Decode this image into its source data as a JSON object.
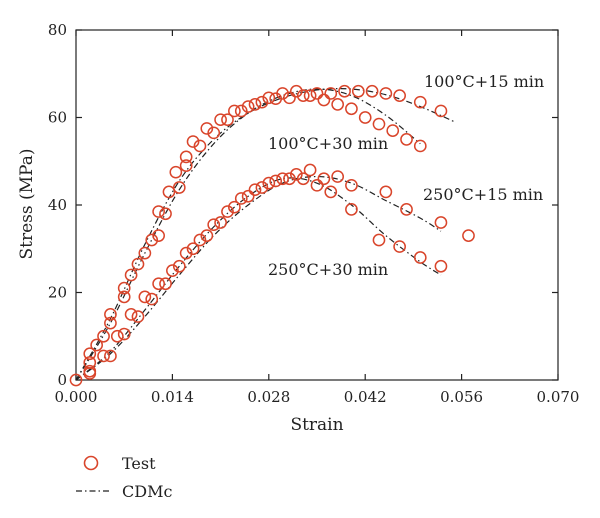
{
  "chart_data": {
    "type": "scatter",
    "xlabel": "Strain",
    "ylabel": "Stress (MPa)",
    "xlim": [
      0,
      0.07
    ],
    "ylim": [
      0,
      80
    ],
    "x_ticks": [
      "0.000",
      "0.014",
      "0.028",
      "0.042",
      "0.056",
      "0.070"
    ],
    "y_ticks": [
      "0",
      "20",
      "40",
      "60",
      "80"
    ],
    "grid": false,
    "legend": {
      "placement": "bottom-left",
      "entries": [
        {
          "label": "Test",
          "marker": "open-circle"
        },
        {
          "label": "CDMc",
          "marker": "dash-dot-line"
        }
      ]
    },
    "colors": {
      "test_markers": "#d9452b",
      "model_lines": "#222222",
      "axes": "#222222"
    },
    "annotations": [
      {
        "text": "100°C+15 min",
        "series": "100°C+15 min"
      },
      {
        "text": "100°C+30 min",
        "series": "100°C+30 min"
      },
      {
        "text": "250°C+15 min",
        "series": "250°C+15 min"
      },
      {
        "text": "250°C+30 min",
        "series": "250°C+30 min"
      }
    ],
    "series": [
      {
        "name": "100°C+15 min",
        "test": [
          [
            0,
            0
          ],
          [
            0.002,
            6
          ],
          [
            0.004,
            10
          ],
          [
            0.005,
            15
          ],
          [
            0.007,
            21
          ],
          [
            0.009,
            26.5
          ],
          [
            0.011,
            32
          ],
          [
            0.012,
            38.5
          ],
          [
            0.0135,
            43
          ],
          [
            0.0145,
            47.5
          ],
          [
            0.016,
            51
          ],
          [
            0.017,
            54.5
          ],
          [
            0.019,
            57.5
          ],
          [
            0.021,
            59.5
          ],
          [
            0.023,
            61.5
          ],
          [
            0.025,
            62.5
          ],
          [
            0.027,
            63.5
          ],
          [
            0.029,
            64.3
          ],
          [
            0.031,
            64.5
          ],
          [
            0.033,
            65
          ],
          [
            0.035,
            65.5
          ],
          [
            0.037,
            65.5
          ],
          [
            0.039,
            66
          ],
          [
            0.041,
            66
          ],
          [
            0.043,
            66
          ],
          [
            0.045,
            65.5
          ],
          [
            0.047,
            65
          ],
          [
            0.05,
            63.5
          ],
          [
            0.053,
            61.5
          ]
        ],
        "model": [
          [
            0,
            0
          ],
          [
            0.005,
            14
          ],
          [
            0.01,
            31
          ],
          [
            0.015,
            45.5
          ],
          [
            0.02,
            55
          ],
          [
            0.025,
            61
          ],
          [
            0.03,
            64.5
          ],
          [
            0.035,
            66.3
          ],
          [
            0.04,
            66.5
          ],
          [
            0.045,
            65.2
          ],
          [
            0.05,
            62.5
          ],
          [
            0.055,
            59
          ]
        ]
      },
      {
        "name": "100°C+30 min",
        "test": [
          [
            0.002,
            4
          ],
          [
            0.003,
            8
          ],
          [
            0.005,
            13
          ],
          [
            0.007,
            19
          ],
          [
            0.008,
            24
          ],
          [
            0.01,
            29
          ],
          [
            0.012,
            33
          ],
          [
            0.013,
            38
          ],
          [
            0.015,
            44
          ],
          [
            0.016,
            49
          ],
          [
            0.018,
            53.5
          ],
          [
            0.02,
            56.5
          ],
          [
            0.022,
            59.5
          ],
          [
            0.024,
            61.5
          ],
          [
            0.026,
            63
          ],
          [
            0.028,
            64.5
          ],
          [
            0.03,
            65.5
          ],
          [
            0.032,
            66
          ],
          [
            0.034,
            65
          ],
          [
            0.036,
            64
          ],
          [
            0.038,
            63
          ],
          [
            0.04,
            62
          ],
          [
            0.042,
            60
          ],
          [
            0.044,
            58.5
          ],
          [
            0.046,
            57
          ],
          [
            0.048,
            55
          ],
          [
            0.05,
            53.5
          ]
        ],
        "model": [
          [
            0,
            0
          ],
          [
            0.005,
            13
          ],
          [
            0.01,
            29
          ],
          [
            0.015,
            43.5
          ],
          [
            0.02,
            54
          ],
          [
            0.025,
            61
          ],
          [
            0.03,
            65
          ],
          [
            0.035,
            66.5
          ],
          [
            0.04,
            65
          ],
          [
            0.045,
            60.5
          ],
          [
            0.05,
            54
          ]
        ]
      },
      {
        "name": "250°C+15 min",
        "test": [
          [
            0.002,
            2
          ],
          [
            0.004,
            5.5
          ],
          [
            0.006,
            10
          ],
          [
            0.008,
            15
          ],
          [
            0.01,
            19
          ],
          [
            0.012,
            22
          ],
          [
            0.014,
            25
          ],
          [
            0.016,
            29
          ],
          [
            0.018,
            32
          ],
          [
            0.02,
            35.5
          ],
          [
            0.022,
            38.5
          ],
          [
            0.024,
            41.5
          ],
          [
            0.026,
            43.5
          ],
          [
            0.028,
            45
          ],
          [
            0.03,
            46
          ],
          [
            0.032,
            47
          ],
          [
            0.034,
            48
          ],
          [
            0.036,
            46
          ],
          [
            0.038,
            46.5
          ],
          [
            0.04,
            44.5
          ],
          [
            0.045,
            43
          ],
          [
            0.048,
            39
          ],
          [
            0.053,
            36
          ],
          [
            0.057,
            33
          ]
        ],
        "model": [
          [
            0,
            0
          ],
          [
            0.005,
            6
          ],
          [
            0.01,
            14.5
          ],
          [
            0.015,
            24
          ],
          [
            0.02,
            33
          ],
          [
            0.025,
            40
          ],
          [
            0.03,
            45
          ],
          [
            0.035,
            46.5
          ],
          [
            0.04,
            45
          ],
          [
            0.045,
            41
          ],
          [
            0.05,
            37
          ],
          [
            0.053,
            34
          ]
        ]
      },
      {
        "name": "250°C+30 min",
        "test": [
          [
            0.002,
            1.5
          ],
          [
            0.005,
            5.5
          ],
          [
            0.007,
            10.5
          ],
          [
            0.009,
            14.5
          ],
          [
            0.011,
            18.5
          ],
          [
            0.013,
            22
          ],
          [
            0.015,
            26
          ],
          [
            0.017,
            30
          ],
          [
            0.019,
            33
          ],
          [
            0.021,
            36
          ],
          [
            0.023,
            39.5
          ],
          [
            0.025,
            42
          ],
          [
            0.027,
            44
          ],
          [
            0.029,
            45.5
          ],
          [
            0.031,
            46
          ],
          [
            0.033,
            46
          ],
          [
            0.035,
            44.5
          ],
          [
            0.037,
            43
          ],
          [
            0.04,
            39
          ],
          [
            0.044,
            32
          ],
          [
            0.047,
            30.5
          ],
          [
            0.05,
            28
          ],
          [
            0.053,
            26
          ]
        ],
        "model": [
          [
            0,
            0
          ],
          [
            0.005,
            6.5
          ],
          [
            0.01,
            16
          ],
          [
            0.015,
            26
          ],
          [
            0.02,
            35
          ],
          [
            0.025,
            42
          ],
          [
            0.03,
            46
          ],
          [
            0.035,
            45
          ],
          [
            0.04,
            40
          ],
          [
            0.045,
            33
          ],
          [
            0.05,
            27
          ],
          [
            0.053,
            24
          ]
        ]
      }
    ]
  }
}
